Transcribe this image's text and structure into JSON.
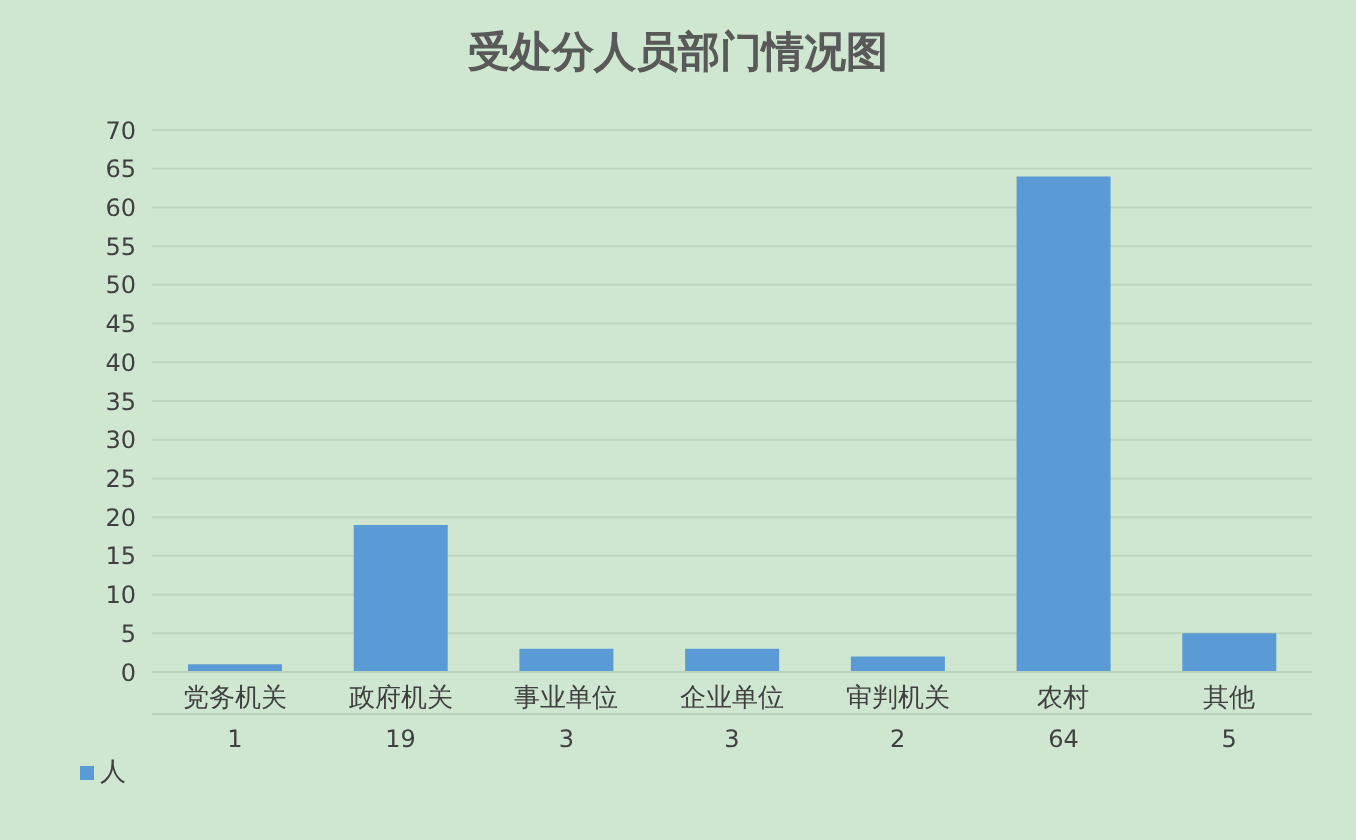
{
  "chart_data": {
    "type": "bar",
    "title": "受处分人员部门情况图",
    "categories": [
      "党务机关",
      "政府机关",
      "事业单位",
      "企业单位",
      "审判机关",
      "农村",
      "其他"
    ],
    "series": [
      {
        "name": "人",
        "color": "#5b9bd5",
        "values": [
          1,
          19,
          3,
          3,
          2,
          64,
          5
        ]
      }
    ],
    "ylim": [
      0,
      70
    ],
    "yticks": [
      0,
      5,
      10,
      15,
      20,
      25,
      30,
      35,
      40,
      45,
      50,
      55,
      60,
      65,
      70
    ],
    "grid": "y",
    "legend": "bottom",
    "data_labels": true
  }
}
